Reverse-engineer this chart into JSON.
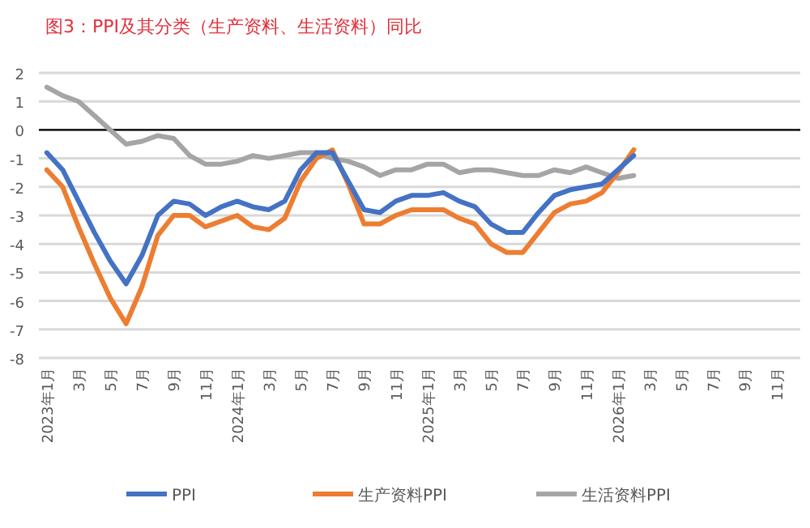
{
  "chart_data": {
    "type": "line",
    "title": "图3：PPI及其分类（生产资料、生活资料）同比",
    "categories": [
      "2023年1月",
      null,
      "3月",
      null,
      "5月",
      null,
      "7月",
      null,
      "9月",
      null,
      "11月",
      null,
      "2024年1月",
      null,
      "3月",
      null,
      "5月",
      null,
      "7月",
      null,
      "9月",
      null,
      "11月",
      null,
      "2025年1月",
      null,
      "3月",
      null,
      "5月",
      null,
      "7月",
      null,
      "9月",
      null,
      "11月",
      null,
      "2026年1月",
      null,
      "3月",
      null,
      "5月",
      null,
      "7月",
      null,
      "9月",
      null,
      "11月",
      null
    ],
    "series": [
      {
        "name": "PPI",
        "color": "#4472c4",
        "values": [
          -0.8,
          -1.4,
          -2.5,
          -3.6,
          -4.6,
          -5.4,
          -4.4,
          -3.0,
          -2.5,
          -2.6,
          -3.0,
          -2.7,
          -2.5,
          -2.7,
          -2.8,
          -2.5,
          -1.4,
          -0.8,
          -0.8,
          -1.8,
          -2.8,
          -2.9,
          -2.5,
          -2.3,
          -2.3,
          -2.2,
          -2.5,
          -2.7,
          -3.3,
          -3.6,
          -3.6,
          -2.9,
          -2.3,
          -2.1,
          -2.0,
          -1.9,
          -1.4,
          -0.9,
          null,
          null,
          null,
          null,
          null,
          null,
          null,
          null,
          null,
          null
        ]
      },
      {
        "name": "生产资料PPI",
        "color": "#ed7d31",
        "values": [
          -1.4,
          -2.0,
          -3.4,
          -4.7,
          -5.9,
          -6.8,
          -5.5,
          -3.7,
          -3.0,
          -3.0,
          -3.4,
          -3.2,
          -3.0,
          -3.4,
          -3.5,
          -3.1,
          -1.8,
          -1.0,
          -0.7,
          -1.9,
          -3.3,
          -3.3,
          -3.0,
          -2.8,
          -2.8,
          -2.8,
          -3.1,
          -3.3,
          -4.0,
          -4.3,
          -4.3,
          -3.6,
          -2.9,
          -2.6,
          -2.5,
          -2.2,
          -1.5,
          -0.7,
          null,
          null,
          null,
          null,
          null,
          null,
          null,
          null,
          null,
          null
        ]
      },
      {
        "name": "生活资料PPI",
        "color": "#a5a5a5",
        "values": [
          1.5,
          1.2,
          1.0,
          0.5,
          0.0,
          -0.5,
          -0.4,
          -0.2,
          -0.3,
          -0.9,
          -1.2,
          -1.2,
          -1.1,
          -0.9,
          -1.0,
          -0.9,
          -0.8,
          -0.8,
          -1.0,
          -1.1,
          -1.3,
          -1.6,
          -1.4,
          -1.4,
          -1.2,
          -1.2,
          -1.5,
          -1.4,
          -1.4,
          -1.5,
          -1.6,
          -1.6,
          -1.4,
          -1.5,
          -1.3,
          -1.5,
          -1.7,
          -1.6,
          null,
          null,
          null,
          null,
          null,
          null,
          null,
          null,
          null,
          null
        ]
      }
    ],
    "ylim": [
      -8,
      2
    ],
    "yticks": [
      -8,
      -7,
      -6,
      -5,
      -4,
      -3,
      -2,
      -1,
      0,
      1,
      2
    ],
    "grid": "y",
    "legend": "bottom"
  }
}
